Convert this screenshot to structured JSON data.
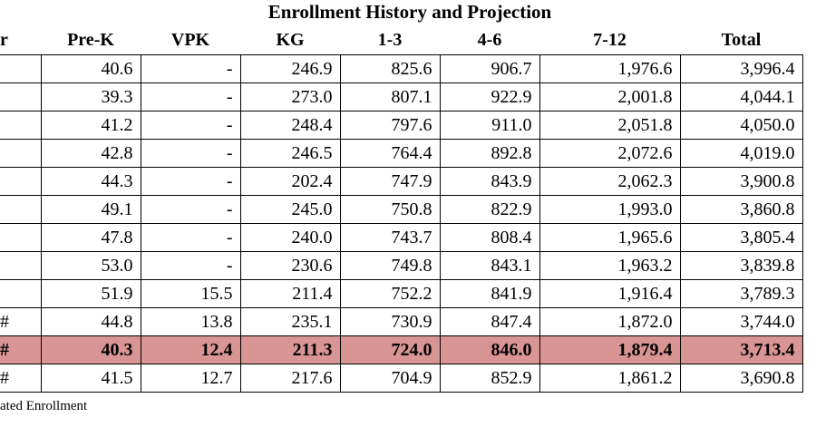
{
  "title": "Enrollment History and Projection",
  "table": {
    "columns": [
      "r",
      "Pre-K",
      "VPK",
      "KG",
      "1-3",
      "4-6",
      "7-12",
      "Total"
    ],
    "rows": [
      [
        null,
        "40.6",
        "-",
        "246.9",
        "825.6",
        "906.7",
        "1,976.6",
        "3,996.4"
      ],
      [
        null,
        "39.3",
        "-",
        "273.0",
        "807.1",
        "922.9",
        "2,001.8",
        "4,044.1"
      ],
      [
        null,
        "41.2",
        "-",
        "248.4",
        "797.6",
        "911.0",
        "2,051.8",
        "4,050.0"
      ],
      [
        null,
        "42.8",
        "-",
        "246.5",
        "764.4",
        "892.8",
        "2,072.6",
        "4,019.0"
      ],
      [
        null,
        "44.3",
        "-",
        "202.4",
        "747.9",
        "843.9",
        "2,062.3",
        "3,900.8"
      ],
      [
        null,
        "49.1",
        "-",
        "245.0",
        "750.8",
        "822.9",
        "1,993.0",
        "3,860.8"
      ],
      [
        null,
        "47.8",
        "-",
        "240.0",
        "743.7",
        "808.4",
        "1,965.6",
        "3,805.4"
      ],
      [
        null,
        "53.0",
        "-",
        "230.6",
        "749.8",
        "843.1",
        "1,963.2",
        "3,839.8"
      ],
      [
        null,
        "51.9",
        "15.5",
        "211.4",
        "752.2",
        "841.9",
        "1,916.4",
        "3,789.3"
      ],
      [
        "#",
        "44.8",
        "13.8",
        "235.1",
        "730.9",
        "847.4",
        "1,872.0",
        "3,744.0"
      ],
      [
        "#",
        "40.3",
        "12.4",
        "211.3",
        "724.0",
        "846.0",
        "1,879.4",
        "3,713.4"
      ],
      [
        "#",
        "41.5",
        "12.7",
        "217.6",
        "704.9",
        "852.9",
        "1,861.2",
        "3,690.8"
      ]
    ]
  },
  "footnote": "ated Enrollment"
}
